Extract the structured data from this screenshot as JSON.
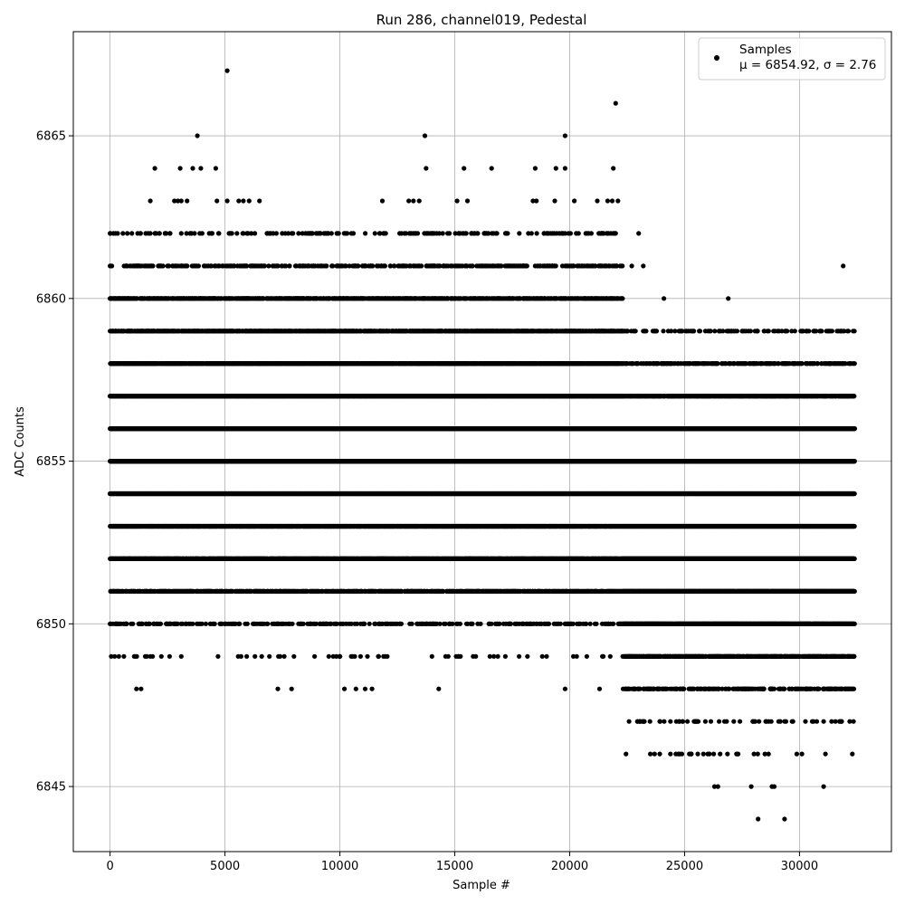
{
  "chart_data": {
    "type": "scatter",
    "title": "Run 286, channel019, Pedestal",
    "xlabel": "Sample #",
    "ylabel": "ADC Counts",
    "xlim": [
      -1600,
      34000
    ],
    "ylim": [
      6843.0,
      6868.2
    ],
    "x_ticks": [
      0,
      5000,
      10000,
      15000,
      20000,
      25000,
      30000
    ],
    "y_ticks": [
      6845,
      6850,
      6855,
      6860,
      6865
    ],
    "grid": true,
    "legend": {
      "placement": "top-right",
      "label_line1": "Samples",
      "label_line2": "μ = 6854.92, σ = 2.76"
    },
    "marker_color": "#000000",
    "series": [
      {
        "name": "Samples",
        "density_bands": [
          {
            "y": 6856,
            "segments": [
              [
                0,
                32400,
                1.0
              ]
            ]
          },
          {
            "y": 6855,
            "segments": [
              [
                0,
                32400,
                1.0
              ]
            ]
          },
          {
            "y": 6854,
            "segments": [
              [
                0,
                32400,
                1.0
              ]
            ]
          },
          {
            "y": 6857,
            "segments": [
              [
                0,
                22300,
                0.95
              ],
              [
                22300,
                32400,
                0.7
              ]
            ]
          },
          {
            "y": 6853,
            "segments": [
              [
                0,
                22300,
                0.9
              ],
              [
                22300,
                32400,
                1.0
              ]
            ]
          },
          {
            "y": 6858,
            "segments": [
              [
                0,
                22300,
                0.8
              ],
              [
                22300,
                32400,
                0.35
              ]
            ]
          },
          {
            "y": 6852,
            "segments": [
              [
                0,
                22300,
                0.75
              ],
              [
                22300,
                32400,
                1.0
              ]
            ]
          },
          {
            "y": 6859,
            "segments": [
              [
                0,
                22300,
                0.55
              ],
              [
                22300,
                32400,
                0.12
              ]
            ]
          },
          {
            "y": 6851,
            "segments": [
              [
                0,
                22300,
                0.45
              ],
              [
                22300,
                32400,
                0.95
              ]
            ]
          },
          {
            "y": 6860,
            "segments": [
              [
                0,
                22300,
                0.45
              ],
              [
                22300,
                32400,
                0.0
              ]
            ]
          },
          {
            "y": 6850,
            "segments": [
              [
                0,
                22300,
                0.15
              ],
              [
                22300,
                32400,
                0.85
              ]
            ]
          },
          {
            "y": 6861,
            "segments": [
              [
                0,
                22300,
                0.2
              ]
            ]
          },
          {
            "y": 6849,
            "segments": [
              [
                0,
                22300,
                0.03
              ],
              [
                22300,
                32400,
                0.6
              ]
            ]
          },
          {
            "y": 6862,
            "segments": [
              [
                0,
                22300,
                0.08
              ]
            ]
          },
          {
            "y": 6848,
            "segments": [
              [
                22300,
                32400,
                0.25
              ]
            ]
          },
          {
            "y": 6847,
            "segments": [
              [
                22300,
                32400,
                0.07
              ]
            ]
          },
          {
            "y": 6846,
            "segments": [
              [
                22300,
                32400,
                0.03
              ]
            ]
          }
        ],
        "points": [
          [
            5100,
            6867
          ],
          [
            22000,
            6866
          ],
          [
            3800,
            6865
          ],
          [
            13700,
            6865
          ],
          [
            19800,
            6865
          ],
          [
            1950,
            6864
          ],
          [
            3050,
            6864
          ],
          [
            3600,
            6864
          ],
          [
            3950,
            6864
          ],
          [
            4600,
            6864
          ],
          [
            13750,
            6864
          ],
          [
            15400,
            6864
          ],
          [
            16600,
            6864
          ],
          [
            18500,
            6864
          ],
          [
            19400,
            6864
          ],
          [
            19800,
            6864
          ],
          [
            21900,
            6864
          ],
          [
            1750,
            6863
          ],
          [
            2800,
            6863
          ],
          [
            2950,
            6863
          ],
          [
            3100,
            6863
          ],
          [
            3350,
            6863
          ],
          [
            4650,
            6863
          ],
          [
            5100,
            6863
          ],
          [
            5600,
            6863
          ],
          [
            5800,
            6863
          ],
          [
            6050,
            6863
          ],
          [
            6500,
            6863
          ],
          [
            11850,
            6863
          ],
          [
            13000,
            6863
          ],
          [
            13200,
            6863
          ],
          [
            13450,
            6863
          ],
          [
            15100,
            6863
          ],
          [
            15550,
            6863
          ],
          [
            18400,
            6863
          ],
          [
            18550,
            6863
          ],
          [
            19350,
            6863
          ],
          [
            20200,
            6863
          ],
          [
            21200,
            6863
          ],
          [
            21650,
            6863
          ],
          [
            21850,
            6863
          ],
          [
            22100,
            6863
          ],
          [
            0,
            6862
          ],
          [
            1200,
            6862
          ],
          [
            1750,
            6862
          ],
          [
            2000,
            6862
          ],
          [
            2600,
            6862
          ],
          [
            3100,
            6862
          ],
          [
            3500,
            6862
          ],
          [
            3900,
            6862
          ],
          [
            4400,
            6862
          ],
          [
            5300,
            6862
          ],
          [
            5800,
            6862
          ],
          [
            6300,
            6862
          ],
          [
            7100,
            6862
          ],
          [
            8200,
            6862
          ],
          [
            9000,
            6862
          ],
          [
            9500,
            6862
          ],
          [
            10500,
            6862
          ],
          [
            11900,
            6862
          ],
          [
            12600,
            6862
          ],
          [
            13300,
            6862
          ],
          [
            13800,
            6862
          ],
          [
            15500,
            6862
          ],
          [
            16000,
            6862
          ],
          [
            17300,
            6862
          ],
          [
            18200,
            6862
          ],
          [
            19000,
            6862
          ],
          [
            19800,
            6862
          ],
          [
            20700,
            6862
          ],
          [
            21400,
            6862
          ],
          [
            22000,
            6862
          ],
          [
            23000,
            6862
          ],
          [
            0,
            6861
          ],
          [
            700,
            6861
          ],
          [
            3200,
            6861
          ],
          [
            7300,
            6861
          ],
          [
            11000,
            6861
          ],
          [
            14500,
            6861
          ],
          [
            22700,
            6861
          ],
          [
            23200,
            6861
          ],
          [
            31900,
            6861
          ],
          [
            24100,
            6860
          ],
          [
            26900,
            6860
          ],
          [
            23200,
            6859
          ],
          [
            24900,
            6859
          ],
          [
            25400,
            6859
          ],
          [
            26500,
            6859
          ],
          [
            27200,
            6859
          ],
          [
            29800,
            6859
          ],
          [
            30900,
            6859
          ],
          [
            24000,
            6858
          ],
          [
            25500,
            6858
          ],
          [
            26200,
            6858
          ],
          [
            27500,
            6858
          ],
          [
            28400,
            6858
          ],
          [
            29900,
            6858
          ],
          [
            28800,
            6857
          ],
          [
            29300,
            6857
          ],
          [
            0,
            6850
          ],
          [
            700,
            6850
          ],
          [
            1300,
            6850
          ],
          [
            1700,
            6850
          ],
          [
            2200,
            6850
          ],
          [
            2600,
            6850
          ],
          [
            3500,
            6850
          ],
          [
            4000,
            6850
          ],
          [
            4800,
            6850
          ],
          [
            6500,
            6850
          ],
          [
            7400,
            6850
          ],
          [
            8200,
            6850
          ],
          [
            9300,
            6850
          ],
          [
            10500,
            6850
          ],
          [
            11700,
            6850
          ],
          [
            12600,
            6850
          ],
          [
            13600,
            6850
          ],
          [
            14900,
            6850
          ],
          [
            15700,
            6850
          ],
          [
            16500,
            6850
          ],
          [
            17400,
            6850
          ],
          [
            18900,
            6850
          ],
          [
            19600,
            6850
          ],
          [
            21100,
            6850
          ],
          [
            200,
            6849
          ],
          [
            600,
            6849
          ],
          [
            1100,
            6849
          ],
          [
            1750,
            6849
          ],
          [
            3100,
            6849
          ],
          [
            5700,
            6849
          ],
          [
            6600,
            6849
          ],
          [
            7400,
            6849
          ],
          [
            8000,
            6849
          ],
          [
            8900,
            6849
          ],
          [
            10000,
            6849
          ],
          [
            10900,
            6849
          ],
          [
            11200,
            6849
          ],
          [
            11900,
            6849
          ],
          [
            14600,
            6849
          ],
          [
            15800,
            6849
          ],
          [
            16700,
            6849
          ],
          [
            17200,
            6849
          ],
          [
            17800,
            6849
          ],
          [
            1150,
            6848
          ],
          [
            1350,
            6848
          ],
          [
            7300,
            6848
          ],
          [
            7900,
            6848
          ],
          [
            10200,
            6848
          ],
          [
            10700,
            6848
          ],
          [
            11100,
            6848
          ],
          [
            11400,
            6848
          ],
          [
            14300,
            6848
          ],
          [
            19800,
            6848
          ],
          [
            21300,
            6848
          ],
          [
            22450,
            6846
          ],
          [
            26300,
            6845
          ],
          [
            26450,
            6845
          ],
          [
            27900,
            6845
          ],
          [
            28800,
            6845
          ],
          [
            28900,
            6845
          ],
          [
            31050,
            6845
          ],
          [
            28200,
            6844
          ],
          [
            29350,
            6844
          ]
        ]
      }
    ]
  }
}
